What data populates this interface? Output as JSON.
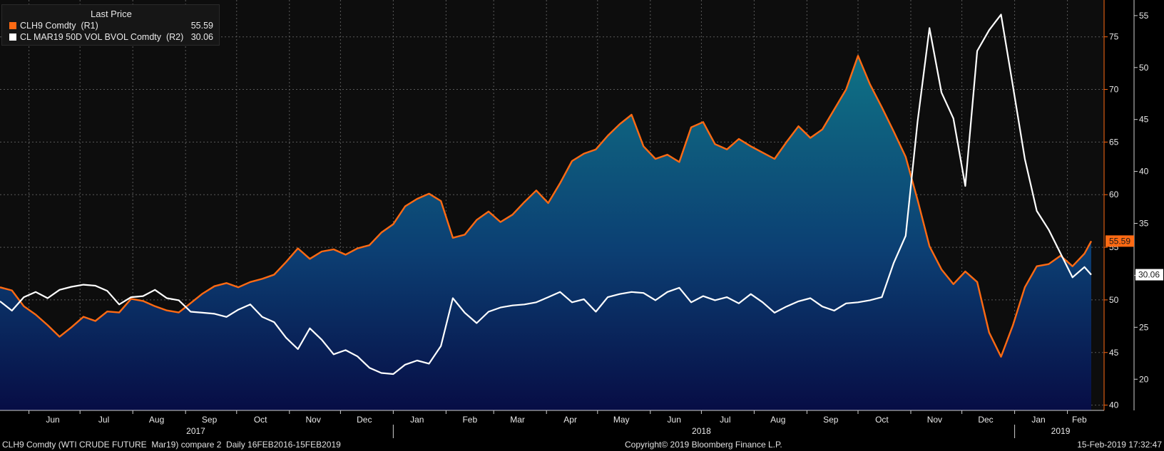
{
  "legend": {
    "title": "Last Price",
    "items": [
      {
        "name": "CLH9 Comdty  (R1)",
        "value": "55.59",
        "color": "#ff6a13"
      },
      {
        "name": "CL MAR19 50D VOL BVOL Comdty  (R2)",
        "value": "30.06",
        "color": "#ffffff"
      }
    ]
  },
  "footer": {
    "left": "CLH9 Comdty (WTI CRUDE FUTURE  Mar19) compare 2  Daily 16FEB2016-15FEB2019",
    "center": "Copyright© 2019 Bloomberg Finance L.P.",
    "right": "15-Feb-2019 17:32:47"
  },
  "chart_data": {
    "type": "line",
    "months": [
      "Jun",
      "Jul",
      "Aug",
      "Sep",
      "Oct",
      "Nov",
      "Dec",
      "Jan",
      "Feb",
      "Mar",
      "Apr",
      "May",
      "Jun",
      "Jul",
      "Aug",
      "Sep",
      "Oct",
      "Nov",
      "Dec",
      "Jan",
      "Feb"
    ],
    "years": [
      "2017",
      "2018",
      "2019"
    ],
    "axes": {
      "price": {
        "ticks": [
          40,
          45,
          50,
          55,
          60,
          65,
          70,
          75
        ],
        "ylim": [
          39.5,
          78.5
        ],
        "side": "right-inner"
      },
      "vol": {
        "ticks": [
          20,
          25,
          30,
          35,
          40,
          45,
          50,
          55
        ],
        "ylim": [
          17,
          56.5
        ],
        "side": "right-outer"
      }
    },
    "last_labels": {
      "price": "55.59",
      "vol": "30.06"
    },
    "series": [
      {
        "name": "CLH9 Comdty  (R1)",
        "axis": "price",
        "style": "line with filled area",
        "color": "#ff6a13",
        "points": [
          [
            "2017-05-15",
            51.2
          ],
          [
            "2017-05-22",
            50.9
          ],
          [
            "2017-05-29",
            49.4
          ],
          [
            "2017-06-05",
            48.6
          ],
          [
            "2017-06-12",
            47.6
          ],
          [
            "2017-06-19",
            46.5
          ],
          [
            "2017-06-26",
            47.4
          ],
          [
            "2017-07-03",
            48.4
          ],
          [
            "2017-07-10",
            48.0
          ],
          [
            "2017-07-17",
            48.9
          ],
          [
            "2017-07-24",
            48.8
          ],
          [
            "2017-07-31",
            50.1
          ],
          [
            "2017-08-07",
            49.9
          ],
          [
            "2017-08-14",
            49.4
          ],
          [
            "2017-08-21",
            49.0
          ],
          [
            "2017-08-28",
            48.8
          ],
          [
            "2017-09-04",
            49.7
          ],
          [
            "2017-09-11",
            50.6
          ],
          [
            "2017-09-18",
            51.3
          ],
          [
            "2017-09-25",
            51.6
          ],
          [
            "2017-10-02",
            51.2
          ],
          [
            "2017-10-09",
            51.7
          ],
          [
            "2017-10-16",
            52.0
          ],
          [
            "2017-10-23",
            52.4
          ],
          [
            "2017-10-30",
            53.6
          ],
          [
            "2017-11-06",
            54.9
          ],
          [
            "2017-11-13",
            53.9
          ],
          [
            "2017-11-20",
            54.6
          ],
          [
            "2017-11-27",
            54.8
          ],
          [
            "2017-12-04",
            54.3
          ],
          [
            "2017-12-11",
            54.9
          ],
          [
            "2017-12-18",
            55.2
          ],
          [
            "2017-12-25",
            56.4
          ],
          [
            "2018-01-01",
            57.2
          ],
          [
            "2018-01-08",
            58.9
          ],
          [
            "2018-01-15",
            59.6
          ],
          [
            "2018-01-22",
            60.1
          ],
          [
            "2018-01-29",
            59.4
          ],
          [
            "2018-02-05",
            55.9
          ],
          [
            "2018-02-12",
            56.2
          ],
          [
            "2018-02-19",
            57.6
          ],
          [
            "2018-02-26",
            58.4
          ],
          [
            "2018-03-05",
            57.4
          ],
          [
            "2018-03-12",
            58.1
          ],
          [
            "2018-03-19",
            59.3
          ],
          [
            "2018-03-26",
            60.4
          ],
          [
            "2018-04-02",
            59.2
          ],
          [
            "2018-04-09",
            61.1
          ],
          [
            "2018-04-16",
            63.2
          ],
          [
            "2018-04-23",
            63.9
          ],
          [
            "2018-04-30",
            64.3
          ],
          [
            "2018-05-07",
            65.6
          ],
          [
            "2018-05-14",
            66.7
          ],
          [
            "2018-05-21",
            67.6
          ],
          [
            "2018-05-28",
            64.6
          ],
          [
            "2018-06-04",
            63.4
          ],
          [
            "2018-06-11",
            63.8
          ],
          [
            "2018-06-18",
            63.1
          ],
          [
            "2018-06-25",
            66.4
          ],
          [
            "2018-07-02",
            66.9
          ],
          [
            "2018-07-09",
            64.8
          ],
          [
            "2018-07-16",
            64.3
          ],
          [
            "2018-07-23",
            65.3
          ],
          [
            "2018-07-30",
            64.6
          ],
          [
            "2018-08-06",
            64.0
          ],
          [
            "2018-08-13",
            63.4
          ],
          [
            "2018-08-20",
            65.0
          ],
          [
            "2018-08-27",
            66.5
          ],
          [
            "2018-09-03",
            65.4
          ],
          [
            "2018-09-10",
            66.2
          ],
          [
            "2018-09-17",
            68.1
          ],
          [
            "2018-09-24",
            70.0
          ],
          [
            "2018-10-01",
            73.2
          ],
          [
            "2018-10-08",
            70.5
          ],
          [
            "2018-10-15",
            68.3
          ],
          [
            "2018-10-22",
            66.0
          ],
          [
            "2018-10-29",
            63.6
          ],
          [
            "2018-11-05",
            59.5
          ],
          [
            "2018-11-12",
            55.1
          ],
          [
            "2018-11-19",
            52.9
          ],
          [
            "2018-11-26",
            51.5
          ],
          [
            "2018-12-03",
            52.7
          ],
          [
            "2018-12-10",
            51.7
          ],
          [
            "2018-12-17",
            46.9
          ],
          [
            "2018-12-24",
            44.6
          ],
          [
            "2018-12-31",
            47.6
          ],
          [
            "2019-01-07",
            51.2
          ],
          [
            "2019-01-14",
            53.2
          ],
          [
            "2019-01-21",
            53.4
          ],
          [
            "2019-01-28",
            54.2
          ],
          [
            "2019-02-04",
            53.2
          ],
          [
            "2019-02-11",
            54.4
          ],
          [
            "2019-02-15",
            55.59
          ]
        ]
      },
      {
        "name": "CL MAR19 50D VOL BVOL Comdty  (R2)",
        "axis": "vol",
        "style": "line",
        "color": "#ffffff",
        "points": [
          [
            "2017-05-15",
            27.5
          ],
          [
            "2017-05-22",
            26.6
          ],
          [
            "2017-05-29",
            27.9
          ],
          [
            "2017-06-05",
            28.4
          ],
          [
            "2017-06-12",
            27.8
          ],
          [
            "2017-06-19",
            28.6
          ],
          [
            "2017-06-26",
            28.9
          ],
          [
            "2017-07-03",
            29.1
          ],
          [
            "2017-07-10",
            29.0
          ],
          [
            "2017-07-17",
            28.5
          ],
          [
            "2017-07-24",
            27.2
          ],
          [
            "2017-07-31",
            27.9
          ],
          [
            "2017-08-07",
            28.0
          ],
          [
            "2017-08-14",
            28.6
          ],
          [
            "2017-08-21",
            27.8
          ],
          [
            "2017-08-28",
            27.6
          ],
          [
            "2017-09-04",
            26.5
          ],
          [
            "2017-09-11",
            26.4
          ],
          [
            "2017-09-18",
            26.3
          ],
          [
            "2017-09-25",
            26.0
          ],
          [
            "2017-10-02",
            26.7
          ],
          [
            "2017-10-09",
            27.2
          ],
          [
            "2017-10-16",
            26.0
          ],
          [
            "2017-10-23",
            25.5
          ],
          [
            "2017-10-30",
            24.0
          ],
          [
            "2017-11-06",
            22.9
          ],
          [
            "2017-11-13",
            24.9
          ],
          [
            "2017-11-20",
            23.8
          ],
          [
            "2017-11-27",
            22.4
          ],
          [
            "2017-12-04",
            22.8
          ],
          [
            "2017-12-11",
            22.2
          ],
          [
            "2017-12-18",
            21.1
          ],
          [
            "2017-12-25",
            20.6
          ],
          [
            "2018-01-01",
            20.5
          ],
          [
            "2018-01-08",
            21.4
          ],
          [
            "2018-01-15",
            21.8
          ],
          [
            "2018-01-22",
            21.5
          ],
          [
            "2018-01-29",
            23.2
          ],
          [
            "2018-02-05",
            27.8
          ],
          [
            "2018-02-12",
            26.4
          ],
          [
            "2018-02-19",
            25.4
          ],
          [
            "2018-02-26",
            26.5
          ],
          [
            "2018-03-05",
            26.9
          ],
          [
            "2018-03-12",
            27.1
          ],
          [
            "2018-03-19",
            27.2
          ],
          [
            "2018-03-26",
            27.4
          ],
          [
            "2018-04-02",
            27.9
          ],
          [
            "2018-04-09",
            28.4
          ],
          [
            "2018-04-16",
            27.4
          ],
          [
            "2018-04-23",
            27.7
          ],
          [
            "2018-04-30",
            26.5
          ],
          [
            "2018-05-07",
            27.9
          ],
          [
            "2018-05-14",
            28.2
          ],
          [
            "2018-05-21",
            28.4
          ],
          [
            "2018-05-28",
            28.3
          ],
          [
            "2018-06-04",
            27.6
          ],
          [
            "2018-06-11",
            28.4
          ],
          [
            "2018-06-18",
            28.8
          ],
          [
            "2018-06-25",
            27.4
          ],
          [
            "2018-07-02",
            28.0
          ],
          [
            "2018-07-09",
            27.6
          ],
          [
            "2018-07-16",
            27.9
          ],
          [
            "2018-07-23",
            27.3
          ],
          [
            "2018-07-30",
            28.2
          ],
          [
            "2018-08-06",
            27.4
          ],
          [
            "2018-08-13",
            26.4
          ],
          [
            "2018-08-20",
            27.0
          ],
          [
            "2018-08-27",
            27.5
          ],
          [
            "2018-09-03",
            27.8
          ],
          [
            "2018-09-10",
            27.0
          ],
          [
            "2018-09-17",
            26.6
          ],
          [
            "2018-09-24",
            27.3
          ],
          [
            "2018-10-01",
            27.4
          ],
          [
            "2018-10-08",
            27.6
          ],
          [
            "2018-10-15",
            27.9
          ],
          [
            "2018-10-22",
            31.2
          ],
          [
            "2018-10-29",
            33.8
          ],
          [
            "2018-11-05",
            44.8
          ],
          [
            "2018-11-12",
            53.8
          ],
          [
            "2018-11-19",
            47.6
          ],
          [
            "2018-11-26",
            45.1
          ],
          [
            "2018-12-03",
            38.6
          ],
          [
            "2018-12-10",
            51.6
          ],
          [
            "2018-12-17",
            53.6
          ],
          [
            "2018-12-24",
            55.1
          ],
          [
            "2018-12-31",
            48.2
          ],
          [
            "2019-01-07",
            41.2
          ],
          [
            "2019-01-14",
            36.2
          ],
          [
            "2019-01-21",
            34.4
          ],
          [
            "2019-01-28",
            32.1
          ],
          [
            "2019-02-04",
            29.8
          ],
          [
            "2019-02-11",
            30.8
          ],
          [
            "2019-02-15",
            30.06
          ]
        ]
      }
    ]
  }
}
